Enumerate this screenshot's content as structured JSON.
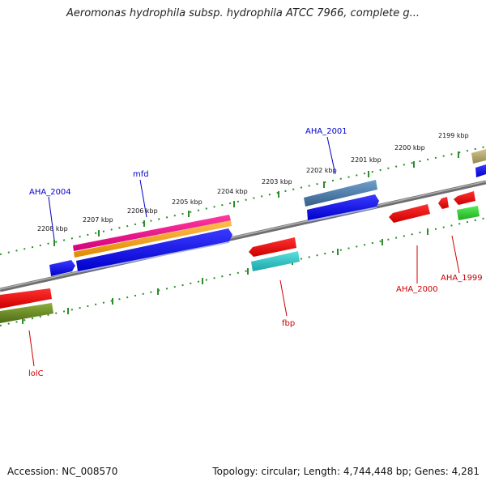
{
  "header": {
    "title": "Aeromonas hydrophila subsp. hydrophila ATCC 7966, complete g..."
  },
  "footer": {
    "accession": "Accession: NC_008570",
    "topology": "Topology: circular; Length: 4,744,448 bp; Genes: 4,281"
  },
  "map": {
    "scale_labels": [
      "2208 kbp",
      "2207 kbp",
      "2206 kbp",
      "2205 kbp",
      "2204 kbp",
      "2203 kbp",
      "2202 kbp",
      "2201 kbp",
      "2200 kbp",
      "2199 kbp"
    ],
    "genes_forward": [
      {
        "label": "AHA_2004",
        "color": "#0000cc"
      },
      {
        "label": "mfd",
        "color": "#0000cc"
      },
      {
        "label": "AHA_2001",
        "color": "#0000cc"
      }
    ],
    "genes_reverse": [
      {
        "label": "lolC",
        "color": "#cc0000"
      },
      {
        "label": "fbp",
        "color": "#cc0000"
      },
      {
        "label": "AHA_2000",
        "color": "#cc0000"
      },
      {
        "label": "AHA_1999",
        "color": "#cc0000"
      }
    ],
    "colors": {
      "backbone": "#808080",
      "scale_ticks": "#2e8b2e",
      "forward_gene": "#0000ee",
      "reverse_gene": "#ee0000",
      "magenta_feature": "#ee1493",
      "orange_feature": "#f5a623",
      "steelblue_feature": "#4682b4",
      "cyan_feature": "#2ec4c4",
      "olive_feature": "#6b8e23",
      "khaki_feature": "#b5a96a",
      "green_feature": "#33cc33"
    }
  }
}
